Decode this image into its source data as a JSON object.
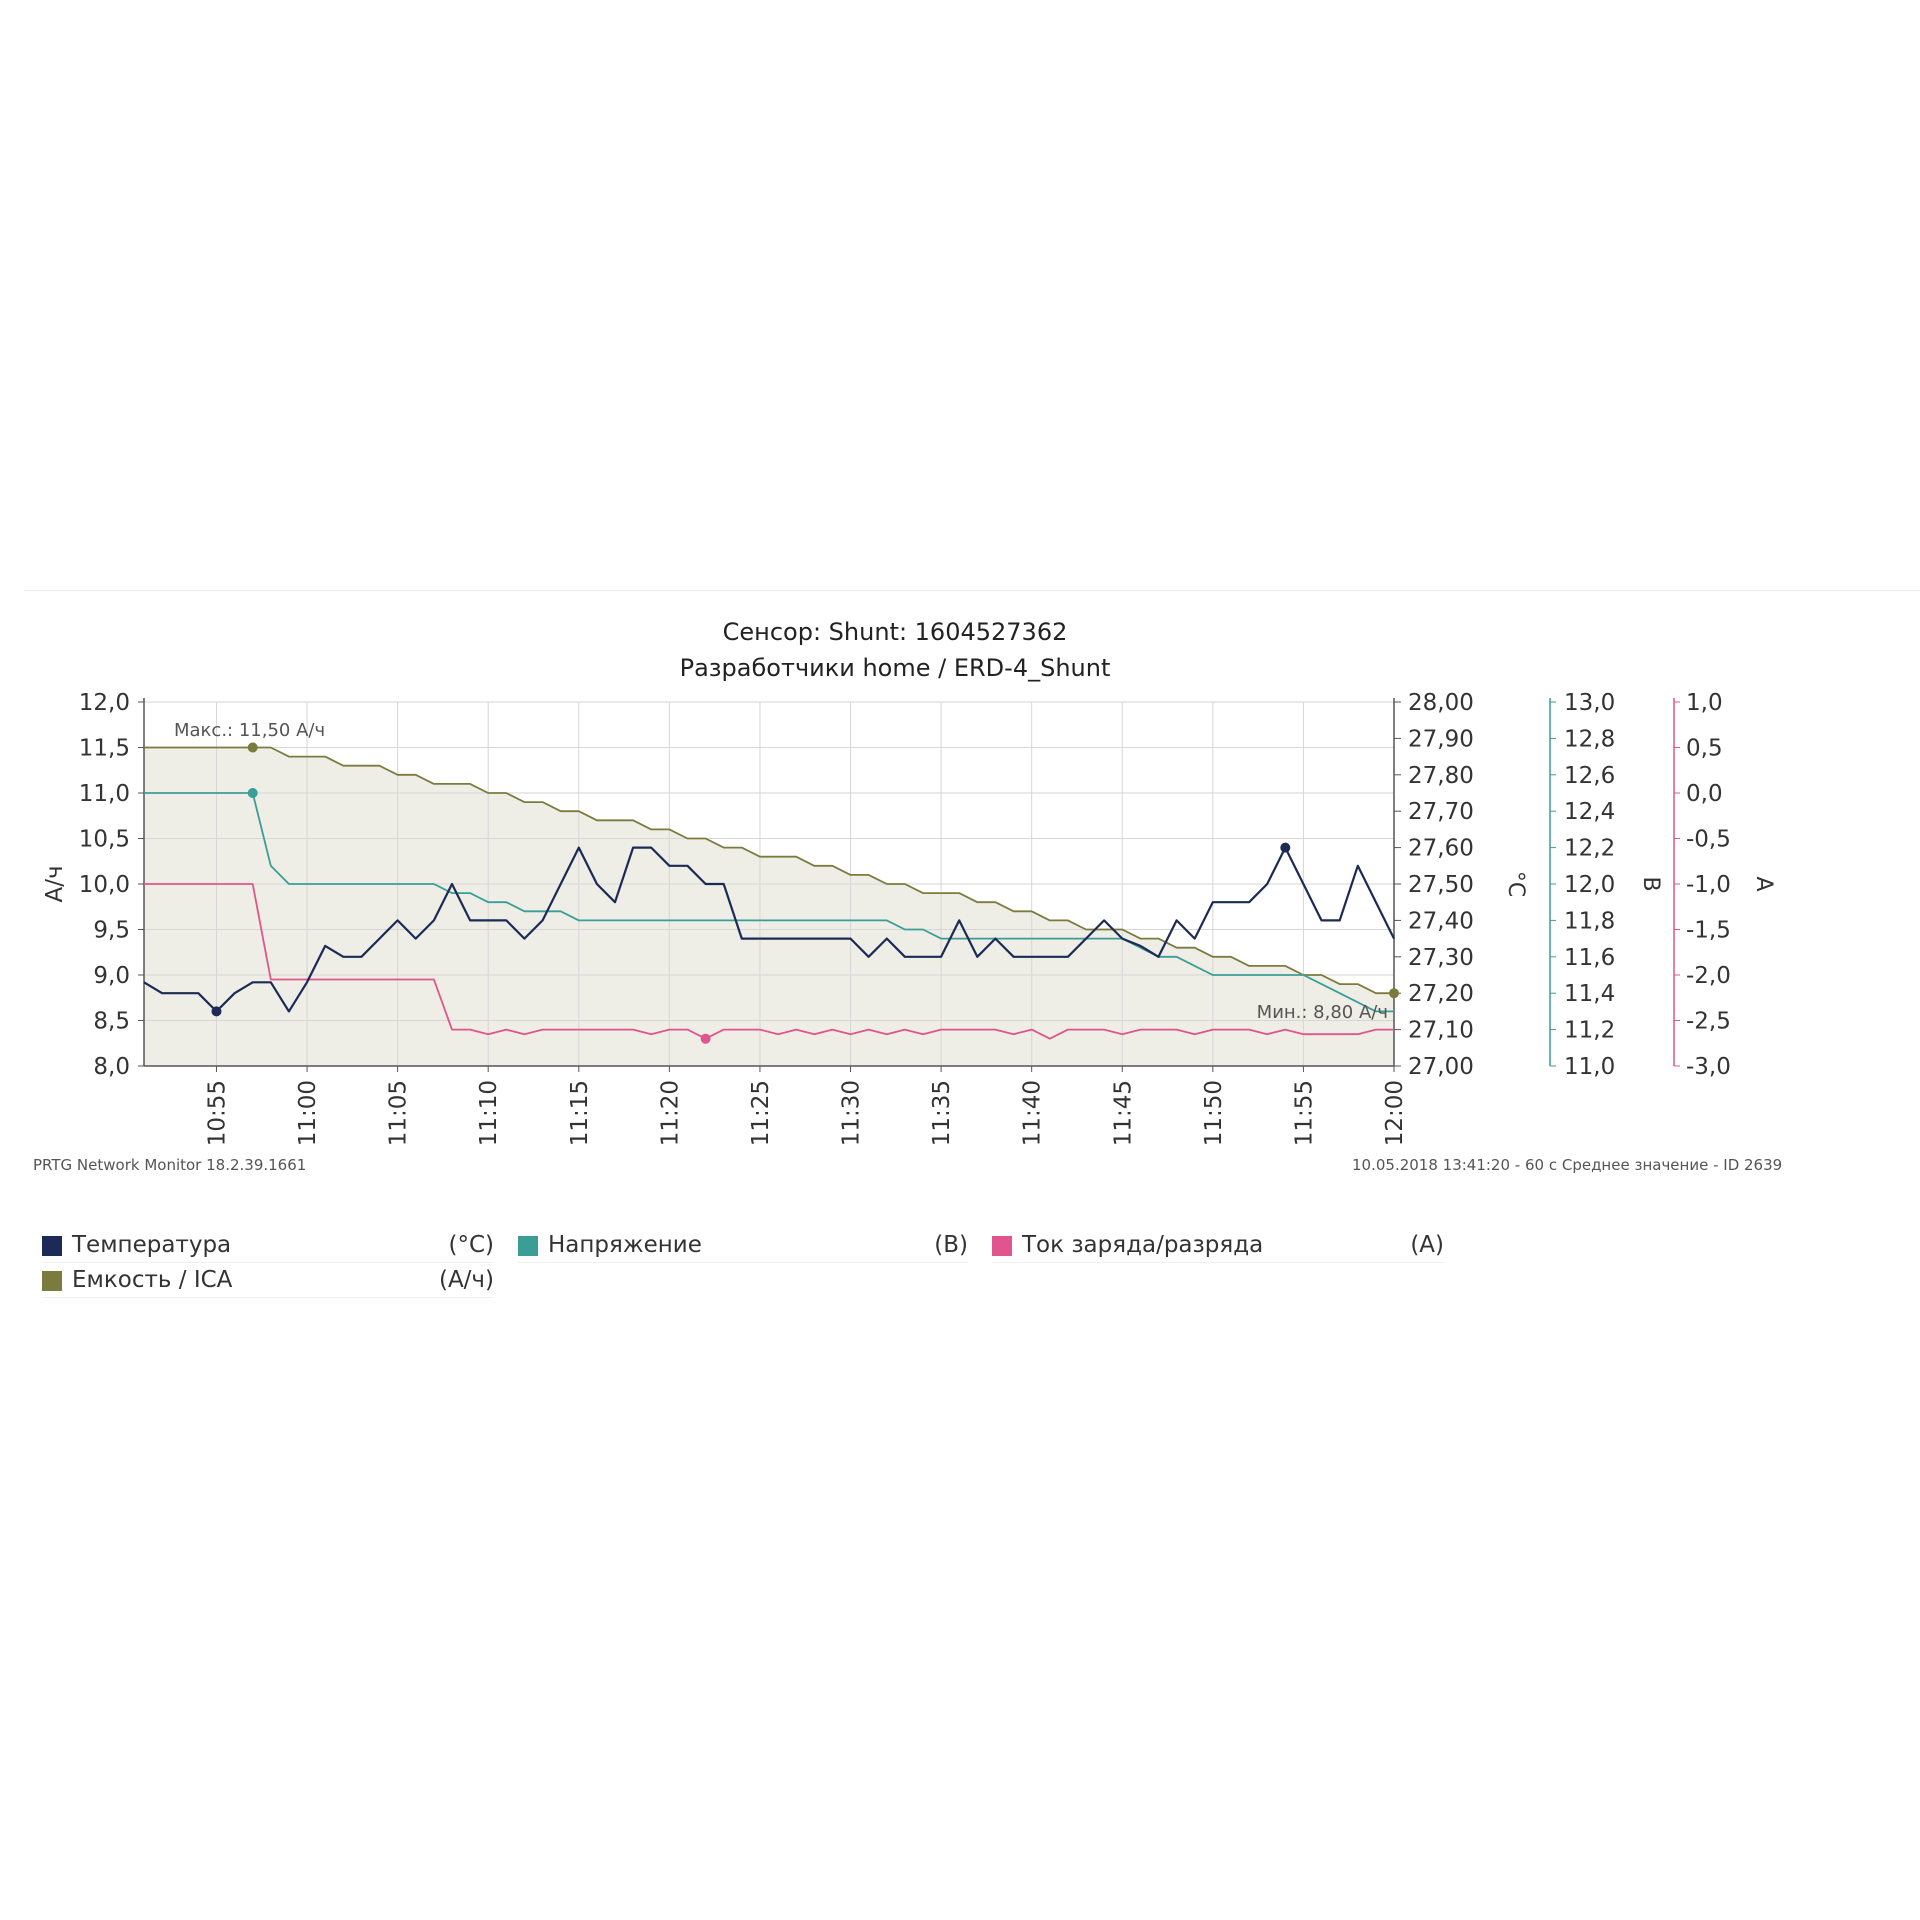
{
  "chart_data": {
    "type": "line",
    "title": "Сенсор: Shunt: 1604527362",
    "subtitle": "Разработчики home / ERD-4_Shunt",
    "x": [
      "10:51",
      "10:52",
      "10:53",
      "10:54",
      "10:55",
      "10:56",
      "10:57",
      "10:58",
      "10:59",
      "11:00",
      "11:01",
      "11:02",
      "11:03",
      "11:04",
      "11:05",
      "11:06",
      "11:07",
      "11:08",
      "11:09",
      "11:10",
      "11:11",
      "11:12",
      "11:13",
      "11:14",
      "11:15",
      "11:16",
      "11:17",
      "11:18",
      "11:19",
      "11:20",
      "11:21",
      "11:22",
      "11:23",
      "11:24",
      "11:25",
      "11:26",
      "11:27",
      "11:28",
      "11:29",
      "11:30",
      "11:31",
      "11:32",
      "11:33",
      "11:34",
      "11:35",
      "11:36",
      "11:37",
      "11:38",
      "11:39",
      "11:40",
      "11:41",
      "11:42",
      "11:43",
      "11:44",
      "11:45",
      "11:46",
      "11:47",
      "11:48",
      "11:49",
      "11:50",
      "11:51",
      "11:52",
      "11:53",
      "11:54",
      "11:55",
      "11:56",
      "11:57",
      "11:58",
      "11:59",
      "12:00"
    ],
    "x_ticks": [
      "10:55",
      "11:00",
      "11:05",
      "11:10",
      "11:15",
      "11:20",
      "11:25",
      "11:30",
      "11:35",
      "11:40",
      "11:45",
      "11:50",
      "11:55",
      "12:00"
    ],
    "axes": [
      {
        "id": "capacity",
        "label": "А/ч",
        "ticks": [
          "8,0",
          "8,5",
          "9,0",
          "9,5",
          "10,0",
          "10,5",
          "11,0",
          "11,5",
          "12,0"
        ],
        "ylim": [
          8.0,
          12.0
        ]
      },
      {
        "id": "temperature",
        "label": "°C",
        "ticks": [
          "27,00",
          "27,10",
          "27,20",
          "27,30",
          "27,40",
          "27,50",
          "27,60",
          "27,70",
          "27,80",
          "27,90",
          "28,00"
        ],
        "ylim": [
          27.0,
          28.0
        ]
      },
      {
        "id": "voltage",
        "label": "В",
        "ticks": [
          "11,0",
          "11,2",
          "11,4",
          "11,6",
          "11,8",
          "12,0",
          "12,2",
          "12,4",
          "12,6",
          "12,8",
          "13,0"
        ],
        "ylim": [
          11.0,
          13.0
        ]
      },
      {
        "id": "current",
        "label": "А",
        "ticks": [
          "-3,0",
          "-2,5",
          "-2,0",
          "-1,5",
          "-1,0",
          "-0,5",
          "0,0",
          "0,5",
          "1,0"
        ],
        "ylim": [
          -3.0,
          1.0
        ]
      }
    ],
    "series": [
      {
        "name": "Емкость / ICA",
        "unit": "(А/ч)",
        "axis": "capacity",
        "color": "#7b7b3e",
        "values": [
          11.5,
          11.5,
          11.5,
          11.5,
          11.5,
          11.5,
          11.5,
          11.5,
          11.4,
          11.4,
          11.4,
          11.3,
          11.3,
          11.3,
          11.2,
          11.2,
          11.1,
          11.1,
          11.1,
          11.0,
          11.0,
          10.9,
          10.9,
          10.8,
          10.8,
          10.7,
          10.7,
          10.7,
          10.6,
          10.6,
          10.5,
          10.5,
          10.4,
          10.4,
          10.3,
          10.3,
          10.3,
          10.2,
          10.2,
          10.1,
          10.1,
          10.0,
          10.0,
          9.9,
          9.9,
          9.9,
          9.8,
          9.8,
          9.7,
          9.7,
          9.6,
          9.6,
          9.5,
          9.5,
          9.5,
          9.4,
          9.4,
          9.3,
          9.3,
          9.2,
          9.2,
          9.1,
          9.1,
          9.1,
          9.0,
          9.0,
          8.9,
          8.9,
          8.8,
          8.8
        ]
      },
      {
        "name": "Температура",
        "unit": "(°C)",
        "axis": "temperature",
        "color": "#1c2a55",
        "values": [
          27.23,
          27.2,
          27.2,
          27.2,
          27.15,
          27.2,
          27.23,
          27.23,
          27.15,
          27.23,
          27.33,
          27.3,
          27.3,
          27.35,
          27.4,
          27.35,
          27.4,
          27.5,
          27.4,
          27.4,
          27.4,
          27.35,
          27.4,
          27.5,
          27.6,
          27.5,
          27.45,
          27.6,
          27.6,
          27.55,
          27.55,
          27.5,
          27.5,
          27.35,
          27.35,
          27.35,
          27.35,
          27.35,
          27.35,
          27.35,
          27.3,
          27.35,
          27.3,
          27.3,
          27.3,
          27.4,
          27.3,
          27.35,
          27.3,
          27.3,
          27.3,
          27.3,
          27.35,
          27.4,
          27.35,
          27.33,
          27.3,
          27.4,
          27.35,
          27.45,
          27.45,
          27.45,
          27.5,
          27.6,
          27.5,
          27.4,
          27.4,
          27.55,
          27.45,
          27.35
        ]
      },
      {
        "name": "Напряжение",
        "unit": "(В)",
        "axis": "voltage",
        "color": "#3a9e97",
        "values": [
          12.5,
          12.5,
          12.5,
          12.5,
          12.5,
          12.5,
          12.5,
          12.1,
          12.0,
          12.0,
          12.0,
          12.0,
          12.0,
          12.0,
          12.0,
          12.0,
          12.0,
          11.95,
          11.95,
          11.9,
          11.9,
          11.85,
          11.85,
          11.85,
          11.8,
          11.8,
          11.8,
          11.8,
          11.8,
          11.8,
          11.8,
          11.8,
          11.8,
          11.8,
          11.8,
          11.8,
          11.8,
          11.8,
          11.8,
          11.8,
          11.8,
          11.8,
          11.75,
          11.75,
          11.7,
          11.7,
          11.7,
          11.7,
          11.7,
          11.7,
          11.7,
          11.7,
          11.7,
          11.7,
          11.7,
          11.65,
          11.6,
          11.6,
          11.55,
          11.5,
          11.5,
          11.5,
          11.5,
          11.5,
          11.5,
          11.45,
          11.4,
          11.35,
          11.3,
          11.3
        ]
      },
      {
        "name": "Ток заряда/разряда",
        "unit": "(А)",
        "axis": "current",
        "color": "#e0558d",
        "values": [
          -1.0,
          -1.0,
          -1.0,
          -1.0,
          -1.0,
          -1.0,
          -1.0,
          -2.05,
          -2.05,
          -2.05,
          -2.05,
          -2.05,
          -2.05,
          -2.05,
          -2.05,
          -2.05,
          -2.05,
          -2.6,
          -2.6,
          -2.65,
          -2.6,
          -2.65,
          -2.6,
          -2.6,
          -2.6,
          -2.6,
          -2.6,
          -2.6,
          -2.65,
          -2.6,
          -2.6,
          -2.7,
          -2.6,
          -2.6,
          -2.6,
          -2.65,
          -2.6,
          -2.65,
          -2.6,
          -2.65,
          -2.6,
          -2.65,
          -2.6,
          -2.65,
          -2.6,
          -2.6,
          -2.6,
          -2.6,
          -2.65,
          -2.6,
          -2.7,
          -2.6,
          -2.6,
          -2.6,
          -2.65,
          -2.6,
          -2.6,
          -2.6,
          -2.65,
          -2.6,
          -2.6,
          -2.6,
          -2.65,
          -2.6,
          -2.65,
          -2.65,
          -2.65,
          -2.65,
          -2.6,
          -2.6
        ]
      }
    ],
    "markers": [
      {
        "series": 0,
        "index": 6,
        "label": "Макс.: 11,50 А/ч"
      },
      {
        "series": 0,
        "index": 69,
        "label": "Мин.: 8,80 А/ч"
      },
      {
        "series": 1,
        "index": 4
      },
      {
        "series": 1,
        "index": 63
      },
      {
        "series": 2,
        "index": 6
      },
      {
        "series": 3,
        "index": 31
      }
    ],
    "grid": true
  },
  "footer": {
    "left": "PRTG Network Monitor 18.2.39.1661",
    "right": "10.05.2018 13:41:20 - 60 с Среднее значение - ID 2639"
  },
  "legend": [
    {
      "name": "Температура",
      "unit": "(°C)",
      "color": "#1c2a55"
    },
    {
      "name": "Напряжение",
      "unit": "(В)",
      "color": "#3a9e97"
    },
    {
      "name": "Ток заряда/разряда",
      "unit": "(А)",
      "color": "#e0558d"
    },
    {
      "name": "Емкость / ICA",
      "unit": "(А/ч)",
      "color": "#7b7b3e"
    }
  ]
}
